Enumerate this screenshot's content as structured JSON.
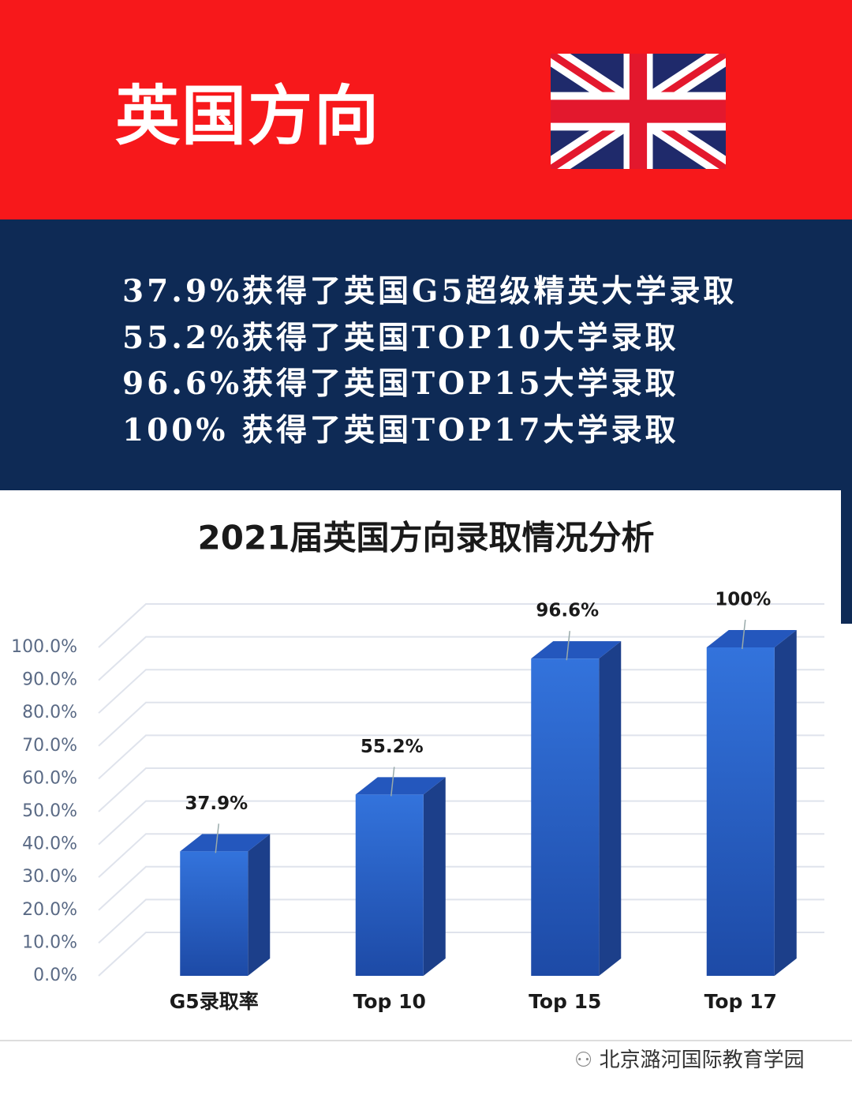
{
  "header": {
    "title": "英国方向"
  },
  "highlights": [
    "37.9%获得了英国G5超级精英大学录取",
    "55.2%获得了英国TOP10大学录取",
    "96.6%获得了英国TOP15大学录取",
    "100% 获得了英国TOP17大学录取"
  ],
  "chart_data": {
    "type": "bar",
    "title": "2021届英国方向录取情况分析",
    "categories": [
      "G5录取率",
      "Top 10",
      "Top 15",
      "Top 17"
    ],
    "values": [
      37.9,
      55.2,
      96.6,
      100
    ],
    "value_labels": [
      "37.9%",
      "55.2%",
      "96.6%",
      "100%"
    ],
    "color": "#2a62cc",
    "ylim": [
      0,
      100
    ],
    "yticks": [
      {
        "value": 0,
        "label": "0.0%"
      },
      {
        "value": 10,
        "label": "10.0%"
      },
      {
        "value": 20,
        "label": "20.0%"
      },
      {
        "value": 30,
        "label": "30.0%"
      },
      {
        "value": 40,
        "label": "40.0%"
      },
      {
        "value": 50,
        "label": "50.0%"
      },
      {
        "value": 60,
        "label": "60.0%"
      },
      {
        "value": 70,
        "label": "70.0%"
      },
      {
        "value": 80,
        "label": "80.0%"
      },
      {
        "value": 90,
        "label": "90.0%"
      },
      {
        "value": 100,
        "label": "100.0%"
      }
    ],
    "grid": true
  },
  "footer": {
    "watermark": "北京潞河国际教育学园"
  }
}
